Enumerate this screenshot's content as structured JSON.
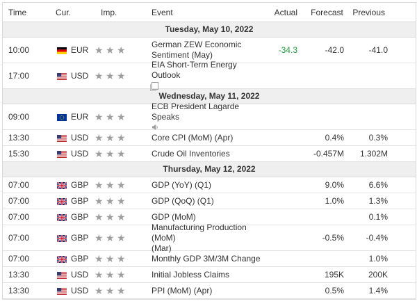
{
  "header": {
    "time": "Time",
    "currency": "Cur.",
    "importance": "Imp.",
    "event": "Event",
    "actual": "Actual",
    "forecast": "Forecast",
    "previous": "Previous"
  },
  "days": [
    {
      "label": "Tuesday, May 10, 2022",
      "events": [
        {
          "time": "10:00",
          "currency": "EUR",
          "flag": "de",
          "event_line1": "German ZEW Economic",
          "event_line2": "Sentiment (May)",
          "actual": "-34.3",
          "actual_color": "#1e9e3c",
          "forecast": "-42.0",
          "previous": "-41.0",
          "extra": ""
        },
        {
          "time": "17:00",
          "currency": "USD",
          "flag": "us",
          "event_line1": "EIA Short-Term Energy Outlook",
          "event_line2": "",
          "actual": "",
          "forecast": "",
          "previous": "",
          "extra": "document-icon"
        }
      ]
    },
    {
      "label": "Wednesday, May 11, 2022",
      "events": [
        {
          "time": "09:00",
          "currency": "EUR",
          "flag": "eu",
          "event_line1": "ECB President Lagarde Speaks",
          "event_line2": "",
          "actual": "",
          "forecast": "",
          "previous": "",
          "extra": "speaker-icon"
        },
        {
          "time": "13:30",
          "currency": "USD",
          "flag": "us",
          "event_line1": "Core CPI (MoM) (Apr)",
          "event_line2": "",
          "actual": "",
          "forecast": "0.4%",
          "previous": "0.3%",
          "extra": ""
        },
        {
          "time": "15:30",
          "currency": "USD",
          "flag": "us",
          "event_line1": "Crude Oil Inventories",
          "event_line2": "",
          "actual": "",
          "forecast": "-0.457M",
          "previous": "1.302M",
          "extra": ""
        }
      ]
    },
    {
      "label": "Thursday, May 12, 2022",
      "events": [
        {
          "time": "07:00",
          "currency": "GBP",
          "flag": "gb",
          "event_line1": "GDP (YoY) (Q1)",
          "event_line2": "",
          "actual": "",
          "forecast": "9.0%",
          "previous": "6.6%",
          "extra": ""
        },
        {
          "time": "07:00",
          "currency": "GBP",
          "flag": "gb",
          "event_line1": "GDP (QoQ) (Q1)",
          "event_line2": "",
          "actual": "",
          "forecast": "1.0%",
          "previous": "1.3%",
          "extra": ""
        },
        {
          "time": "07:00",
          "currency": "GBP",
          "flag": "gb",
          "event_line1": "GDP (MoM)",
          "event_line2": "",
          "actual": "",
          "forecast": "",
          "previous": "0.1%",
          "extra": ""
        },
        {
          "time": "07:00",
          "currency": "GBP",
          "flag": "gb",
          "event_line1": "Manufacturing Production (MoM)",
          "event_line2": "(Mar)",
          "actual": "",
          "forecast": "-0.5%",
          "previous": "-0.4%",
          "extra": ""
        },
        {
          "time": "07:00",
          "currency": "GBP",
          "flag": "gb",
          "event_line1": "Monthly GDP 3M/3M Change",
          "event_line2": "",
          "actual": "",
          "forecast": "",
          "previous": "1.0%",
          "extra": ""
        },
        {
          "time": "13:30",
          "currency": "USD",
          "flag": "us",
          "event_line1": "Initial Jobless Claims",
          "event_line2": "",
          "actual": "",
          "forecast": "195K",
          "previous": "200K",
          "extra": ""
        },
        {
          "time": "13:30",
          "currency": "USD",
          "flag": "us",
          "event_line1": "PPI (MoM) (Apr)",
          "event_line2": "",
          "actual": "",
          "forecast": "0.5%",
          "previous": "1.4%",
          "extra": ""
        }
      ]
    }
  ],
  "importance_icon": "star-icon",
  "importance_stars": 3,
  "colors": {
    "star": "#9e9e9e",
    "actual_positive": "#1e9e3c",
    "day_bg": "#efefef"
  }
}
